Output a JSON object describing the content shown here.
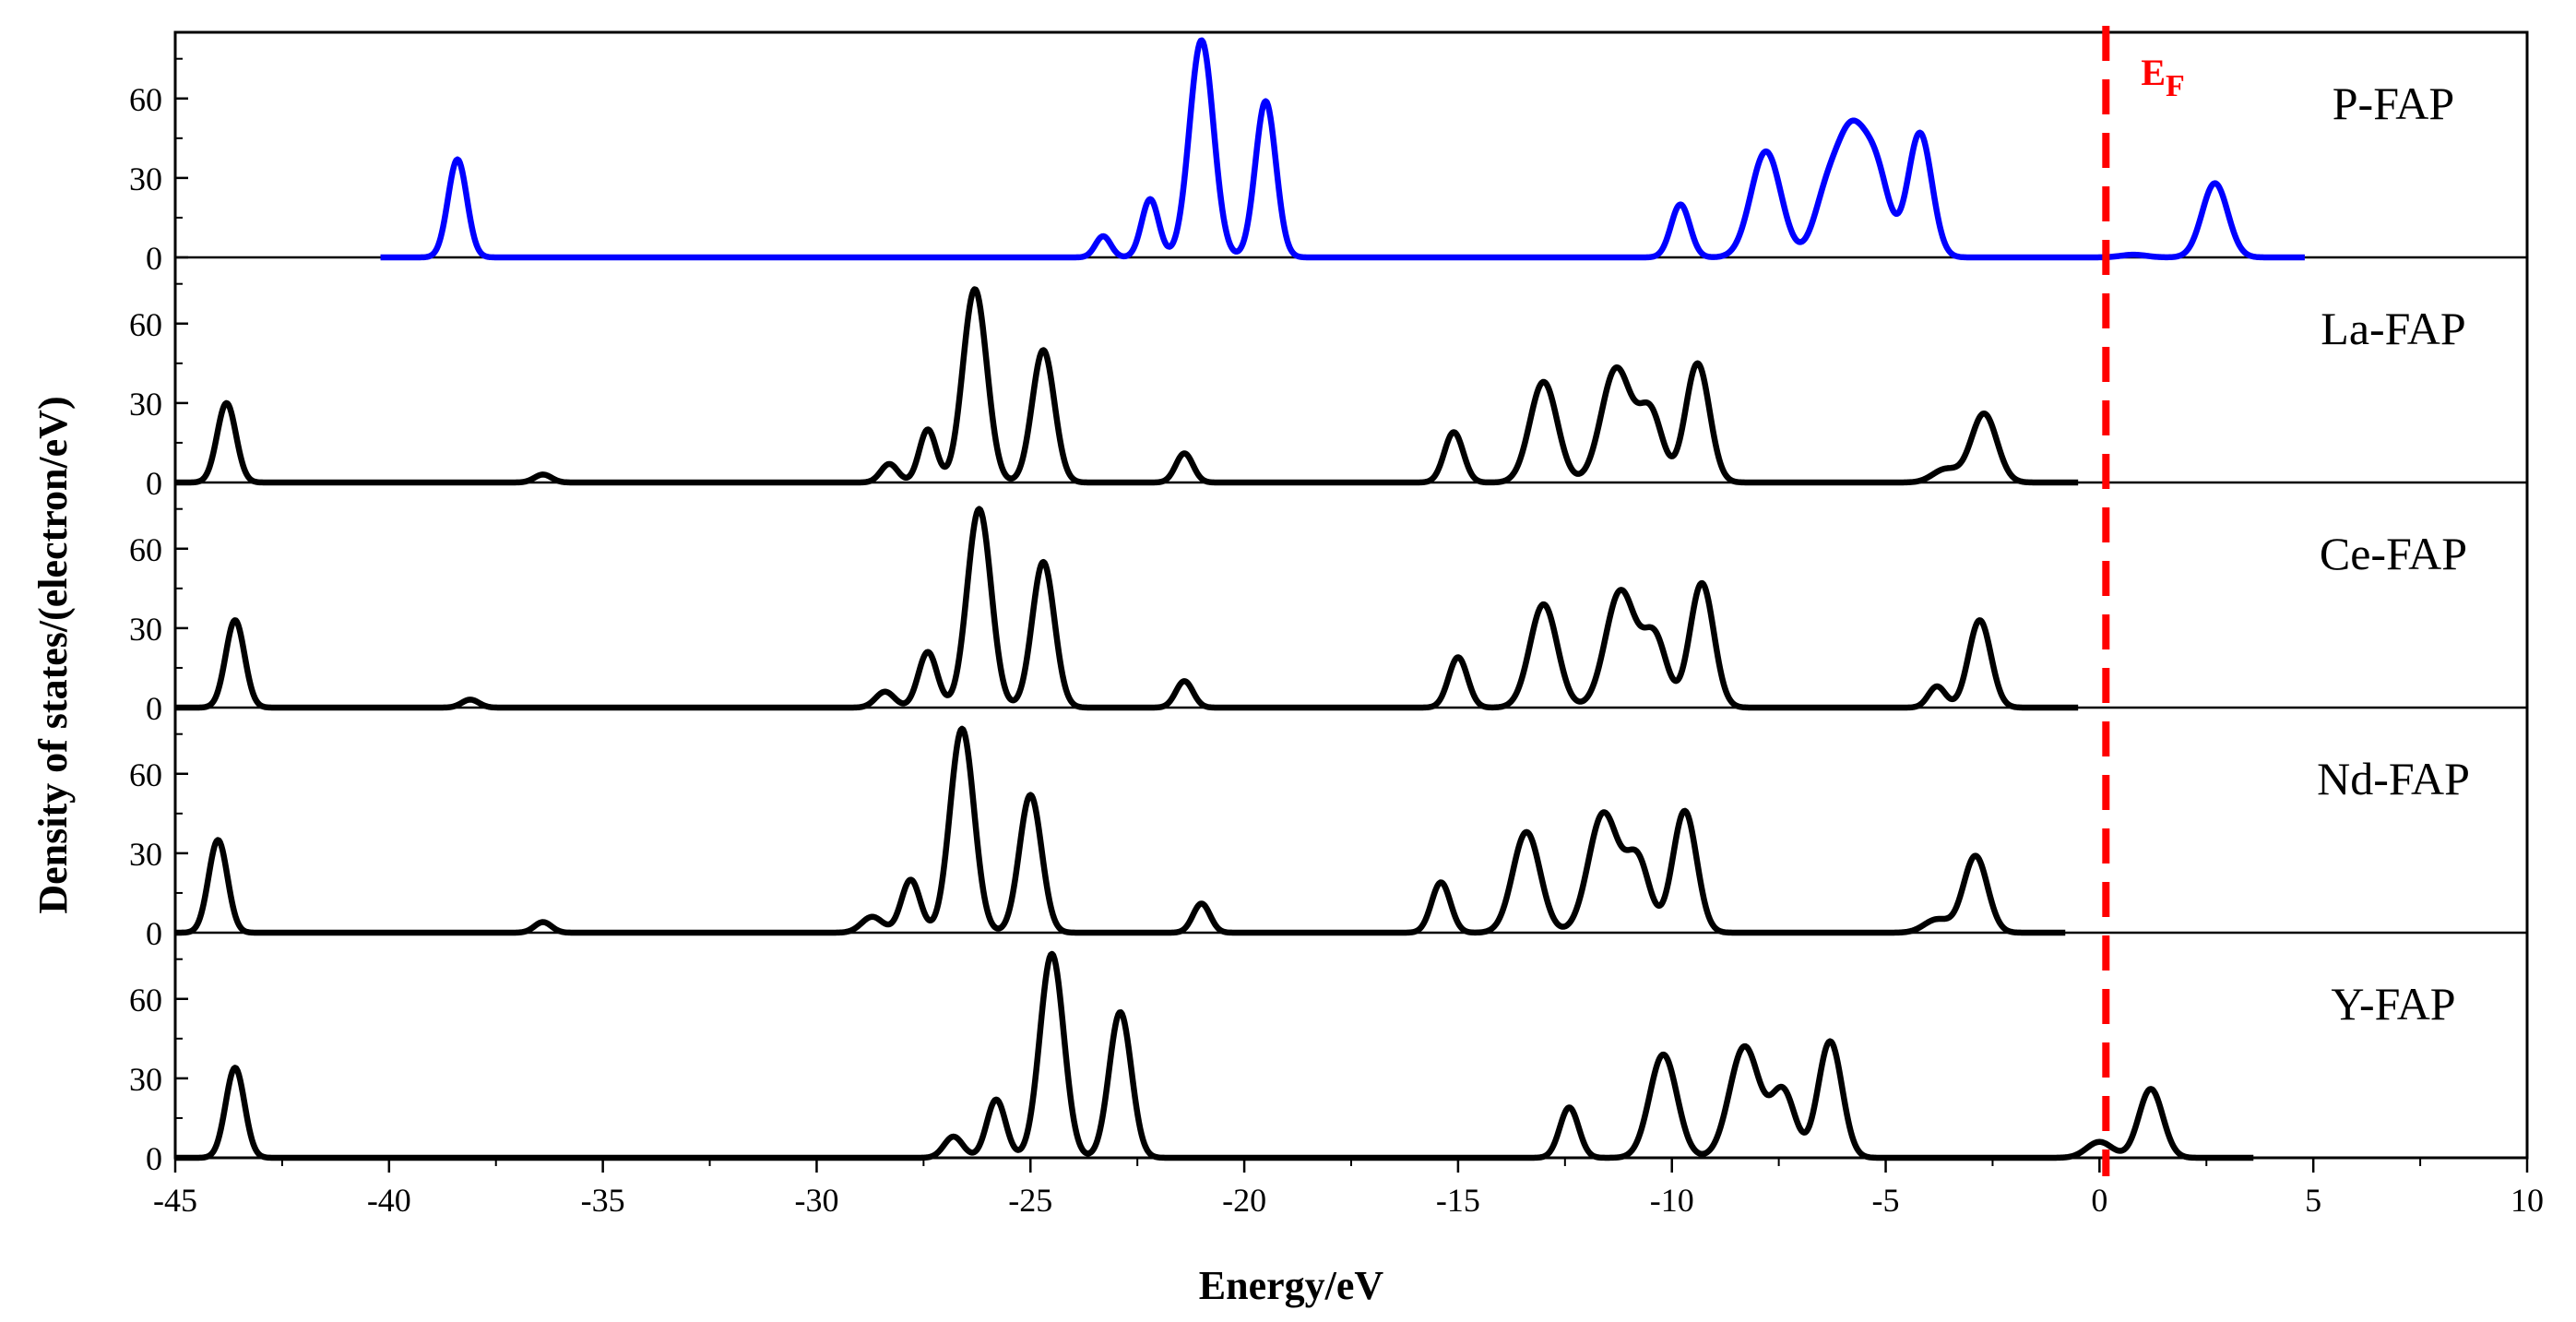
{
  "chart_data": {
    "type": "line",
    "xlabel": "Energy/eV",
    "ylabel": "Density of states/(electron/eV)",
    "xlim": [
      -45,
      10
    ],
    "ylim": [
      0,
      85
    ],
    "x_ticks": [
      -45,
      -40,
      -35,
      -30,
      -25,
      -20,
      -15,
      -10,
      -5,
      0,
      5,
      10
    ],
    "y_ticks": [
      0,
      30,
      60
    ],
    "grid": false,
    "fermi_level": {
      "x": 0.15,
      "label": "E",
      "subscript": "F",
      "color": "#ff0000"
    },
    "series": [
      {
        "name": "P-FAP",
        "color": "#0000ff",
        "x_range": [
          -40.2,
          4.8
        ],
        "peaks": [
          {
            "x": -38.4,
            "height": 37,
            "width": 0.22
          },
          {
            "x": -23.3,
            "height": 8,
            "width": 0.18
          },
          {
            "x": -22.2,
            "height": 22,
            "width": 0.2
          },
          {
            "x": -21.0,
            "height": 82,
            "width": 0.28
          },
          {
            "x": -19.5,
            "height": 59,
            "width": 0.24
          },
          {
            "x": -9.8,
            "height": 20,
            "width": 0.22
          },
          {
            "x": -7.8,
            "height": 40,
            "width": 0.35
          },
          {
            "x": -6.4,
            "height": 20,
            "width": 0.3
          },
          {
            "x": -5.8,
            "height": 45,
            "width": 0.35
          },
          {
            "x": -5.2,
            "height": 28,
            "width": 0.3
          },
          {
            "x": -4.2,
            "height": 47,
            "width": 0.28
          },
          {
            "x": 0.8,
            "height": 1,
            "width": 0.3
          },
          {
            "x": 2.7,
            "height": 28,
            "width": 0.3
          }
        ]
      },
      {
        "name": "La-FAP",
        "color": "#000000",
        "x_range": [
          -45,
          -0.5
        ],
        "peaks": [
          {
            "x": -43.8,
            "height": 30,
            "width": 0.22
          },
          {
            "x": -36.4,
            "height": 3,
            "width": 0.2
          },
          {
            "x": -28.3,
            "height": 7,
            "width": 0.2
          },
          {
            "x": -27.4,
            "height": 20,
            "width": 0.2
          },
          {
            "x": -26.3,
            "height": 73,
            "width": 0.28
          },
          {
            "x": -24.7,
            "height": 50,
            "width": 0.26
          },
          {
            "x": -21.4,
            "height": 11,
            "width": 0.2
          },
          {
            "x": -15.1,
            "height": 19,
            "width": 0.22
          },
          {
            "x": -13.0,
            "height": 38,
            "width": 0.32
          },
          {
            "x": -11.3,
            "height": 43,
            "width": 0.35
          },
          {
            "x": -10.5,
            "height": 26,
            "width": 0.28
          },
          {
            "x": -9.4,
            "height": 45,
            "width": 0.28
          },
          {
            "x": -3.6,
            "height": 5,
            "width": 0.3
          },
          {
            "x": -2.7,
            "height": 26,
            "width": 0.3
          }
        ]
      },
      {
        "name": "Ce-FAP",
        "color": "#000000",
        "x_range": [
          -45,
          -0.5
        ],
        "peaks": [
          {
            "x": -43.6,
            "height": 33,
            "width": 0.22
          },
          {
            "x": -38.1,
            "height": 3,
            "width": 0.2
          },
          {
            "x": -28.4,
            "height": 6,
            "width": 0.22
          },
          {
            "x": -27.4,
            "height": 21,
            "width": 0.22
          },
          {
            "x": -26.2,
            "height": 75,
            "width": 0.28
          },
          {
            "x": -24.7,
            "height": 55,
            "width": 0.26
          },
          {
            "x": -21.4,
            "height": 10,
            "width": 0.2
          },
          {
            "x": -15.0,
            "height": 19,
            "width": 0.22
          },
          {
            "x": -13.0,
            "height": 39,
            "width": 0.32
          },
          {
            "x": -11.2,
            "height": 44,
            "width": 0.35
          },
          {
            "x": -10.4,
            "height": 26,
            "width": 0.28
          },
          {
            "x": -9.3,
            "height": 47,
            "width": 0.28
          },
          {
            "x": -3.8,
            "height": 8,
            "width": 0.2
          },
          {
            "x": -2.8,
            "height": 33,
            "width": 0.26
          }
        ]
      },
      {
        "name": "Nd-FAP",
        "color": "#000000",
        "x_range": [
          -45,
          -0.8
        ],
        "peaks": [
          {
            "x": -44.0,
            "height": 35,
            "width": 0.22
          },
          {
            "x": -36.4,
            "height": 4,
            "width": 0.2
          },
          {
            "x": -28.7,
            "height": 6,
            "width": 0.25
          },
          {
            "x": -27.8,
            "height": 20,
            "width": 0.22
          },
          {
            "x": -26.6,
            "height": 77,
            "width": 0.28
          },
          {
            "x": -25.0,
            "height": 52,
            "width": 0.26
          },
          {
            "x": -21.0,
            "height": 11,
            "width": 0.2
          },
          {
            "x": -15.4,
            "height": 19,
            "width": 0.22
          },
          {
            "x": -13.4,
            "height": 38,
            "width": 0.32
          },
          {
            "x": -11.6,
            "height": 45,
            "width": 0.35
          },
          {
            "x": -10.8,
            "height": 27,
            "width": 0.28
          },
          {
            "x": -9.7,
            "height": 46,
            "width": 0.28
          },
          {
            "x": -3.8,
            "height": 5,
            "width": 0.3
          },
          {
            "x": -2.9,
            "height": 29,
            "width": 0.28
          }
        ]
      },
      {
        "name": "Y-FAP",
        "color": "#000000",
        "x_range": [
          -45,
          3.6
        ],
        "peaks": [
          {
            "x": -43.6,
            "height": 34,
            "width": 0.22
          },
          {
            "x": -26.8,
            "height": 8,
            "width": 0.22
          },
          {
            "x": -25.8,
            "height": 22,
            "width": 0.22
          },
          {
            "x": -24.5,
            "height": 77,
            "width": 0.28
          },
          {
            "x": -22.9,
            "height": 55,
            "width": 0.26
          },
          {
            "x": -12.4,
            "height": 19,
            "width": 0.22
          },
          {
            "x": -10.2,
            "height": 39,
            "width": 0.32
          },
          {
            "x": -8.3,
            "height": 42,
            "width": 0.35
          },
          {
            "x": -7.4,
            "height": 25,
            "width": 0.28
          },
          {
            "x": -6.3,
            "height": 44,
            "width": 0.28
          },
          {
            "x": 0.0,
            "height": 6,
            "width": 0.3
          },
          {
            "x": 1.2,
            "height": 26,
            "width": 0.28
          }
        ]
      }
    ]
  }
}
